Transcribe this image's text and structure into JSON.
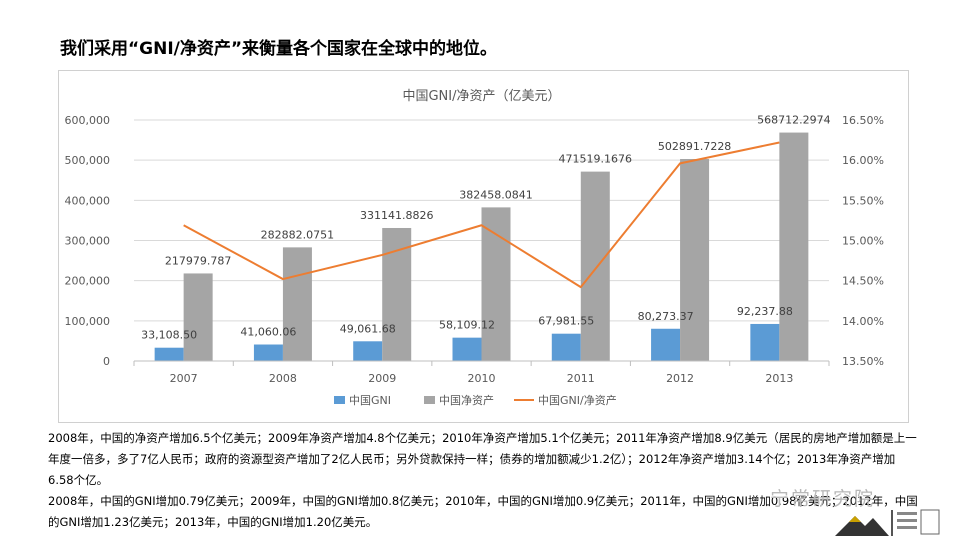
{
  "page": {
    "title": "我们采用“GNI/净资产”来衡量各个国家在全球中的地位。"
  },
  "chart_data": {
    "type": "bar+line",
    "title": "中国GNI/净资产（亿美元）",
    "categories": [
      "2007",
      "2008",
      "2009",
      "2010",
      "2011",
      "2012",
      "2013"
    ],
    "series": [
      {
        "name": "中国GNI",
        "type": "bar",
        "axis": "left",
        "color": "#5b9bd5",
        "values": [
          33108.5,
          41060.06,
          49061.68,
          58109.12,
          67981.55,
          80273.37,
          92237.88
        ],
        "labels": [
          "33,108.50",
          "41,060.06",
          "49,061.68",
          "58,109.12",
          "67,981.55",
          "80,273.37",
          "92,237.88"
        ]
      },
      {
        "name": "中国净资产",
        "type": "bar",
        "axis": "left",
        "color": "#a5a5a5",
        "values": [
          217979.787,
          282882.0751,
          331141.8826,
          382458.0841,
          471519.1676,
          502891.7228,
          568712.2974
        ],
        "labels": [
          "217979.787",
          "282882.0751",
          "331141.8826",
          "382458.0841",
          "471519.1676",
          "502891.7228",
          "568712.2974"
        ]
      },
      {
        "name": "中国GNI/净资产",
        "type": "line",
        "axis": "right",
        "color": "#ed7d31",
        "values": [
          0.1519,
          0.1452,
          0.1482,
          0.1519,
          0.1442,
          0.1596,
          0.1622
        ]
      }
    ],
    "y_left": {
      "min": 0,
      "max": 600000,
      "ticks": [
        "0",
        "100,000",
        "200,000",
        "300,000",
        "400,000",
        "500,000",
        "600,000"
      ]
    },
    "y_right": {
      "min": 0.135,
      "max": 0.165,
      "ticks": [
        "13.50%",
        "14.00%",
        "14.50%",
        "15.00%",
        "15.50%",
        "16.00%",
        "16.50%"
      ]
    },
    "legend_position": "bottom",
    "grid": true
  },
  "notes": {
    "line1": "2008年，中国的净资产增加6.5个亿美元；2009年净资产增加4.8个亿美元；2010年净资产增加5.1个亿美元；2011年净资产增加8.9亿美元（居民的房地产增加额是上一年度一倍多，多了7亿人民币；政府的资源型资产增加了2亿人民币；另外贷款保持一样；债券的增加额减少1.2亿）；2012年净资产增加3.14个亿；2013年净资产增加6.58个亿。",
    "line2": "2008年，中国的GNI增加0.79亿美元；2009年，中国的GNI增加0.8亿美元；2010年，中国的GNI增加0.9亿美元；2011年，中国的GNI增加0.98亿美元；2012年，中国的GNI增加1.23亿美元；2013年，中国的GNI增加1.20亿美元。"
  },
  "watermark": {
    "text": "宁常研究院"
  },
  "colors": {
    "accent_bar1": "#5b9bd5",
    "accent_bar2": "#a5a5a5",
    "accent_line": "#ed7d31"
  }
}
